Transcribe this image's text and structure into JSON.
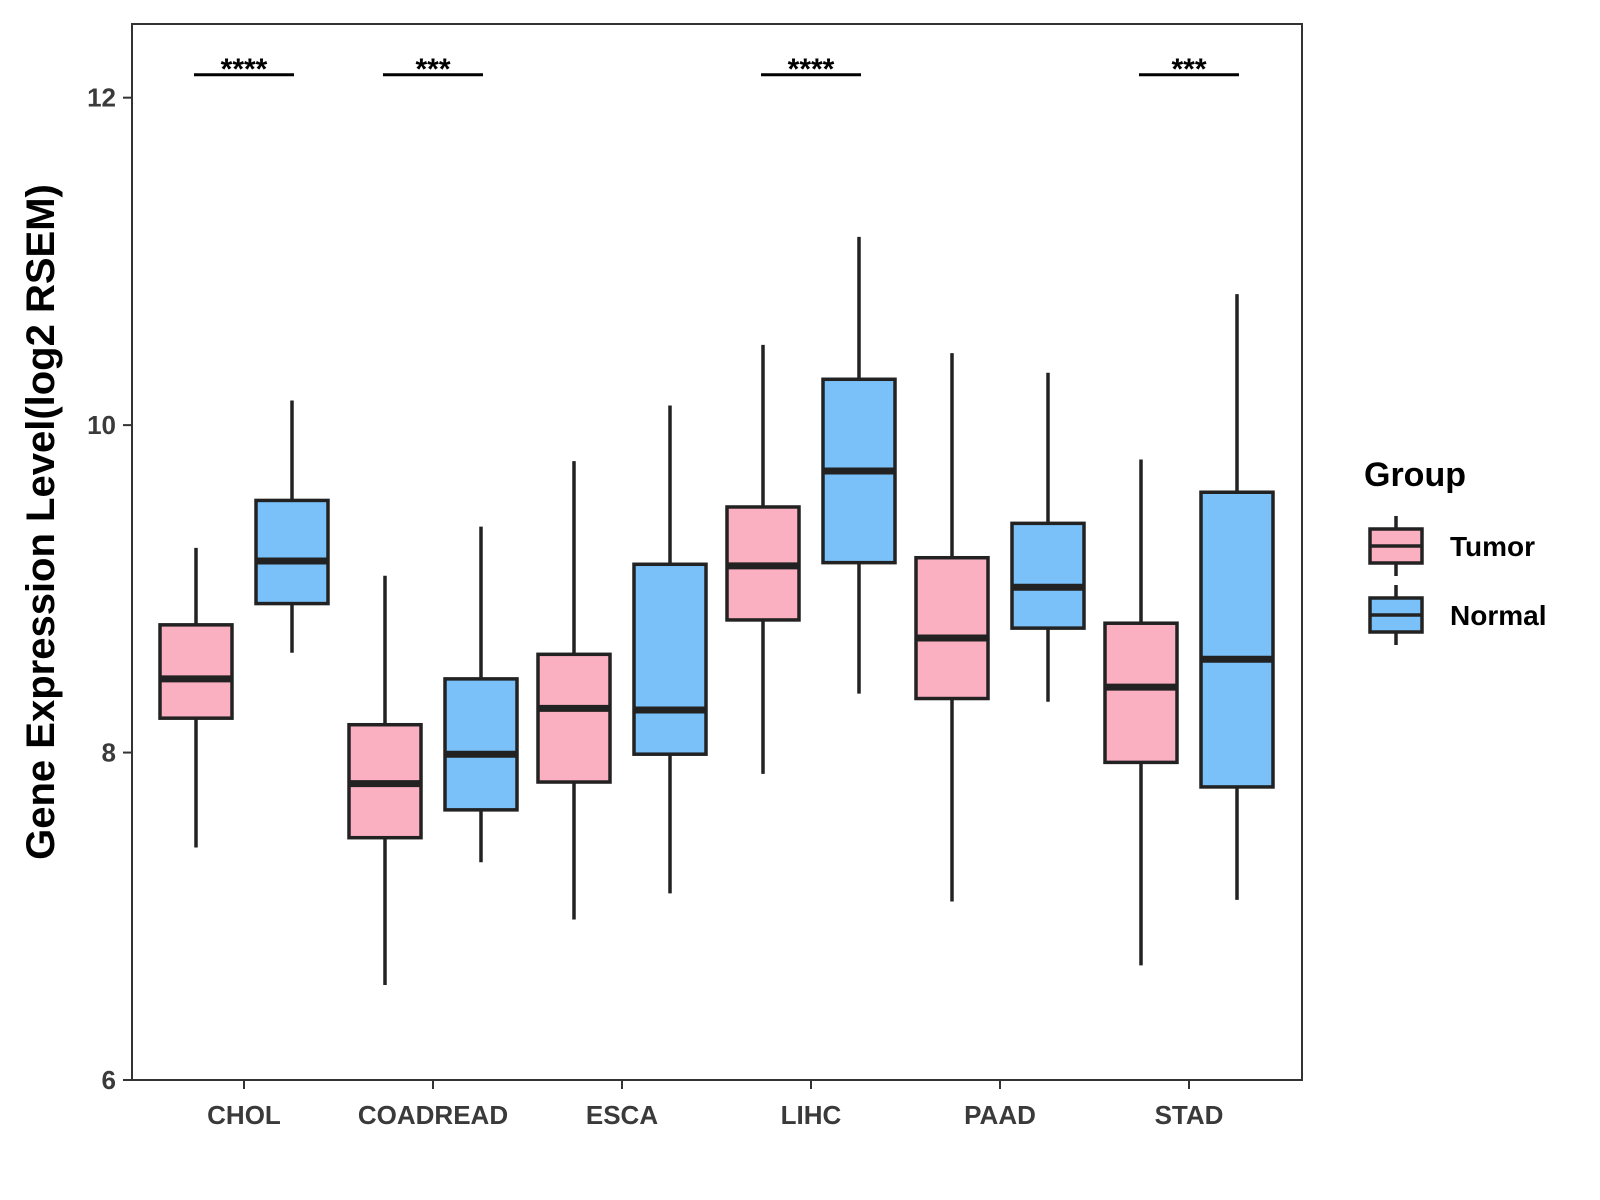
{
  "chart_data": {
    "type": "boxplot",
    "title": "",
    "xlabel": "",
    "ylabel": "Gene Expression Level(log2 RSEM)",
    "ylim": [
      6,
      12.45
    ],
    "yticks": [
      6,
      8,
      10,
      12
    ],
    "categories": [
      "CHOL",
      "COADREAD",
      "ESCA",
      "LIHC",
      "PAAD",
      "STAD"
    ],
    "colors": {
      "Tumor": "#FBB0C2",
      "Normal": "#79C1F8",
      "stroke": "#222222"
    },
    "legend": {
      "title": "Group",
      "position": "right",
      "entries": [
        "Tumor",
        "Normal"
      ]
    },
    "series": [
      {
        "name": "Tumor",
        "boxes": [
          {
            "category": "CHOL",
            "min": 7.42,
            "q1": 8.21,
            "median": 8.45,
            "q3": 8.78,
            "max": 9.25
          },
          {
            "category": "COADREAD",
            "min": 6.58,
            "q1": 7.48,
            "median": 7.81,
            "q3": 8.17,
            "max": 9.08
          },
          {
            "category": "ESCA",
            "min": 6.98,
            "q1": 7.82,
            "median": 8.27,
            "q3": 8.6,
            "max": 9.78
          },
          {
            "category": "LIHC",
            "min": 7.87,
            "q1": 8.81,
            "median": 9.14,
            "q3": 9.5,
            "max": 10.49
          },
          {
            "category": "PAAD",
            "min": 7.09,
            "q1": 8.33,
            "median": 8.7,
            "q3": 9.19,
            "max": 10.44
          },
          {
            "category": "STAD",
            "min": 6.7,
            "q1": 7.94,
            "median": 8.4,
            "q3": 8.79,
            "max": 9.79
          }
        ]
      },
      {
        "name": "Normal",
        "boxes": [
          {
            "category": "CHOL",
            "min": 8.61,
            "q1": 8.91,
            "median": 9.17,
            "q3": 9.54,
            "max": 10.15
          },
          {
            "category": "COADREAD",
            "min": 7.33,
            "q1": 7.65,
            "median": 7.99,
            "q3": 8.45,
            "max": 9.38
          },
          {
            "category": "ESCA",
            "min": 7.14,
            "q1": 7.99,
            "median": 8.26,
            "q3": 9.15,
            "max": 10.12
          },
          {
            "category": "LIHC",
            "min": 8.36,
            "q1": 9.16,
            "median": 9.72,
            "q3": 10.28,
            "max": 11.15
          },
          {
            "category": "PAAD",
            "min": 8.31,
            "q1": 8.76,
            "median": 9.01,
            "q3": 9.4,
            "max": 10.32
          },
          {
            "category": "STAD",
            "min": 7.1,
            "q1": 7.79,
            "median": 8.57,
            "q3": 9.59,
            "max": 10.8
          }
        ]
      }
    ],
    "significance": [
      {
        "category": "CHOL",
        "label": "****"
      },
      {
        "category": "COADREAD",
        "label": "***"
      },
      {
        "category": "LIHC",
        "label": "****"
      },
      {
        "category": "STAD",
        "label": "***"
      }
    ],
    "sig_y": 12.14
  }
}
